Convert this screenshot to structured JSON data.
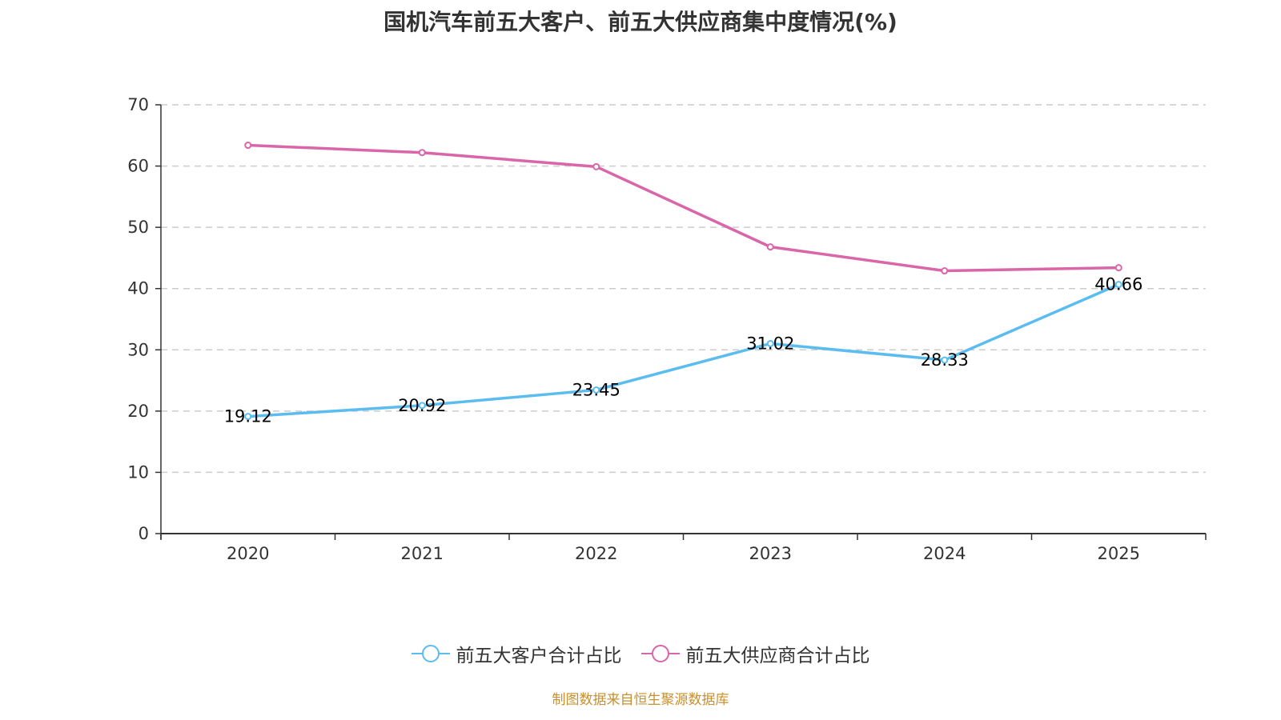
{
  "chart_data": {
    "type": "line",
    "title": "国机汽车前五大客户、前五大供应商集中度情况(%)",
    "xlabel": "",
    "ylabel": "",
    "categories": [
      "2020",
      "2021",
      "2022",
      "2023",
      "2024",
      "2025"
    ],
    "ylim": [
      0,
      70
    ],
    "yticks": [
      0,
      10,
      20,
      30,
      40,
      50,
      60,
      70
    ],
    "grid": true,
    "legend_position": "bottom-center",
    "series": [
      {
        "name": "前五大客户合计占比",
        "color": "#5bbcf0",
        "values": [
          19.12,
          20.92,
          23.45,
          31.02,
          28.33,
          40.66
        ],
        "labels": [
          "19.12",
          "20.92",
          "23.45",
          "31.02",
          "28.33",
          "40.66"
        ],
        "show_labels": true
      },
      {
        "name": "前五大供应商合计占比",
        "color": "#d966a8",
        "values": [
          63.4,
          62.2,
          59.9,
          46.8,
          42.9,
          43.4
        ],
        "show_labels": false
      }
    ]
  },
  "source_text": "制图数据来自恒生聚源数据库"
}
